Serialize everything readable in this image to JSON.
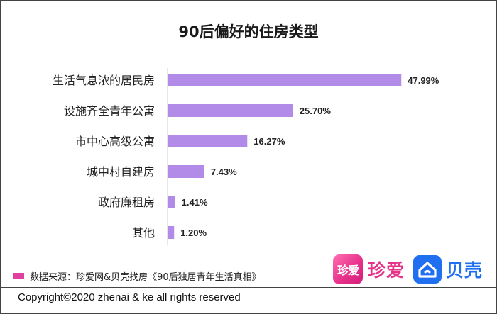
{
  "chart_data": {
    "type": "bar",
    "orientation": "horizontal",
    "title": "90后偏好的住房类型",
    "categories": [
      "生活气息浓的居民房",
      "设施齐全青年公寓",
      "市中心高级公寓",
      "城中村自建房",
      "政府廉租房",
      "其他"
    ],
    "values": [
      47.99,
      25.7,
      16.27,
      7.43,
      1.41,
      1.2
    ],
    "value_labels": [
      "47.99%",
      "25.70%",
      "16.27%",
      "7.43%",
      "1.41%",
      "1.20%"
    ],
    "xlim": [
      0,
      50
    ],
    "grid": false,
    "legend": "none",
    "bar_color": "#b28be8"
  },
  "source": {
    "text": "数据来源：珍爱网&贝壳找房《90后独居青年生活真相》",
    "swatch_color": "#e040a0"
  },
  "logos": {
    "zhenai_icon_text": "珍爱",
    "zhenai_name": "珍爱",
    "beike_icon": "beike-house-icon",
    "beike_name": "贝壳"
  },
  "footer": {
    "copyright": "Copyright©2020 zhenai & ke all rights reserved"
  }
}
